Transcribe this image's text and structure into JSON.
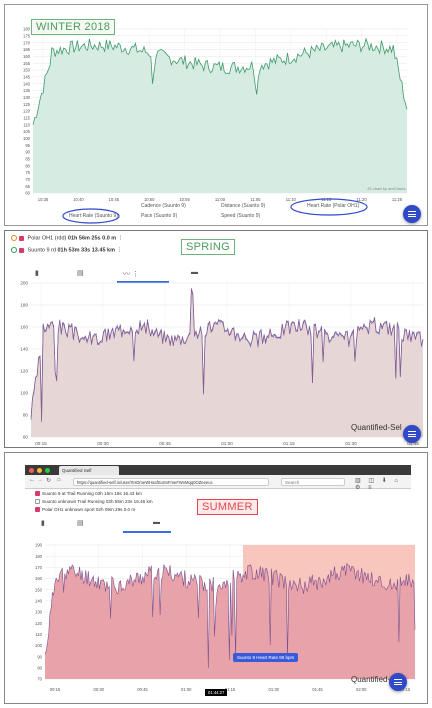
{
  "panels": {
    "winter": {
      "label": "WINTER 2018",
      "credit": "JS chart by amCharts",
      "y_ticks": [
        "180",
        "175",
        "170",
        "165",
        "160",
        "155",
        "150",
        "145",
        "140",
        "135",
        "130",
        "125",
        "120",
        "115",
        "110",
        "105",
        "100",
        "95",
        "90",
        "85",
        "80",
        "75",
        "70",
        "65",
        "60"
      ],
      "x_ticks": [
        "10:35",
        "10:40",
        "10:45",
        "10:50",
        "10:55",
        "11:00",
        "11:05",
        "11:10",
        "11:15",
        "11:20",
        "11:25"
      ],
      "legend_row1": [
        "Cadence (Suunto 9)",
        "Distance (Suunto 9)",
        "Heart Rate (Polar OH1)"
      ],
      "legend_row2": [
        "Heart Rate (Suunto 9)",
        "Pace (Suunto 9)",
        "Speed (Suunto 9)"
      ],
      "colors": {
        "line": "#3f9a6b",
        "fill": "#d6ece2",
        "circle": "#3049c9"
      }
    },
    "spring": {
      "label": "SPRING",
      "sensors": [
        {
          "name": "Polar OH1 (rdd)",
          "value": "01h 56m 25s 0.0 m",
          "ring": "orange"
        },
        {
          "name": "Suunto 9 rd",
          "value": "01h 53m 33s 13.45 km",
          "ring": "green"
        }
      ],
      "y_ticks": [
        "200",
        "180",
        "160",
        "140",
        "120",
        "100",
        "80",
        "60"
      ],
      "x_ticks": [
        "00:15",
        "00:30",
        "00:45",
        "01:00",
        "01:15",
        "01:30",
        "01:45"
      ],
      "watermark": "Quantified-Sel",
      "colors": {
        "fill": "#e6d6d6",
        "line1": "#8a5a8c",
        "line2": "#6b6fc0"
      }
    },
    "summer": {
      "label": "SUMMER",
      "browser_tab": "Quantified Self",
      "url": "https://quantified-self.io/user/XHDmeWHsafSuSnFmeFWxMqq0OZeeeuc",
      "search_placeholder": "Search",
      "sensors": [
        "Suunto 9 at Trail Running  03h 15m 18s 16.43 km",
        "Suunto unknown Trail Running  02h 55m 23s 16.46 km",
        "Polar OH1 unknown sport  02h 09m 29s 0.0 m"
      ],
      "y_ticks": [
        "190",
        "180",
        "170",
        "160",
        "150",
        "140",
        "130",
        "120",
        "110",
        "100",
        "90",
        "80",
        "70"
      ],
      "x_ticks": [
        "00:15",
        "00:30",
        "00:45",
        "01:00",
        "01:15",
        "01:30",
        "01:45",
        "02:00",
        "02:15"
      ],
      "tooltip": "Suunto 9 Heart Rate 89 bpm",
      "time_tooltip": "01:44:27",
      "watermark": "Quantified-Sel",
      "colors": {
        "fill": "#e8a3aa",
        "line": "#7b4f8f",
        "highlight": "#f8c0b8"
      }
    }
  }
}
